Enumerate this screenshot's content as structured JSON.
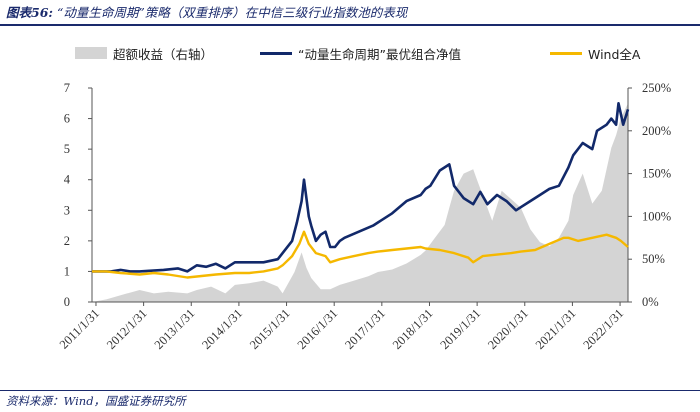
{
  "header": {
    "label": "图表56:",
    "text": "“动量生命周期”策略（双重排序）在中信三级行业指数池的表现"
  },
  "footer": {
    "source": "资料来源：Wind，国盛证券研究所"
  },
  "chart_data": {
    "type": "line",
    "title": "“动量生命周期”策略（双重排序）在中信三级行业指数池的表现",
    "legend_placement": "top",
    "grid": false,
    "x_ticks": [
      "2011/1/31",
      "2012/1/31",
      "2013/1/31",
      "2014/1/31",
      "2015/1/31",
      "2016/1/31",
      "2017/1/31",
      "2018/1/31",
      "2019/1/31",
      "2020/1/31",
      "2021/1/31",
      "2022/1/31"
    ],
    "x_range": [
      2011.0,
      2022.25
    ],
    "y_left": {
      "ticks": [
        "0",
        "1",
        "2",
        "3",
        "4",
        "5",
        "6",
        "7"
      ],
      "range": [
        0,
        7
      ]
    },
    "y_right": {
      "ticks": [
        "0%",
        "50%",
        "100%",
        "150%",
        "200%",
        "250%"
      ],
      "range": [
        0,
        250
      ]
    },
    "series": [
      {
        "name": "超额收益（右轴）",
        "type": "area",
        "axis": "right",
        "color": "#d4d4d4",
        "x": [
          2011.0,
          2011.3,
          2011.6,
          2012.0,
          2012.3,
          2012.6,
          2013.0,
          2013.2,
          2013.5,
          2013.8,
          2014.0,
          2014.3,
          2014.6,
          2014.9,
          2015.0,
          2015.25,
          2015.4,
          2015.5,
          2015.6,
          2015.8,
          2016.0,
          2016.2,
          2016.5,
          2016.8,
          2017.0,
          2017.3,
          2017.6,
          2017.9,
          2018.0,
          2018.2,
          2018.4,
          2018.5,
          2018.6,
          2018.8,
          2019.0,
          2019.1,
          2019.3,
          2019.4,
          2019.6,
          2019.8,
          2020.0,
          2020.2,
          2020.4,
          2020.6,
          2020.8,
          2021.0,
          2021.1,
          2021.3,
          2021.5,
          2021.7,
          2021.9,
          2022.0,
          2022.1,
          2022.25
        ],
        "y": [
          0,
          3,
          8,
          14,
          10,
          12,
          10,
          14,
          18,
          10,
          20,
          22,
          25,
          18,
          10,
          35,
          58,
          40,
          28,
          15,
          15,
          20,
          25,
          30,
          35,
          38,
          45,
          55,
          60,
          75,
          90,
          110,
          130,
          150,
          155,
          140,
          110,
          95,
          130,
          120,
          110,
          85,
          70,
          65,
          75,
          95,
          125,
          150,
          115,
          130,
          180,
          195,
          215,
          232
        ]
      },
      {
        "name": "“动量生命周期”最优组合净值",
        "type": "line",
        "axis": "left",
        "color": "#12296a",
        "x": [
          2011.0,
          2011.2,
          2011.4,
          2011.6,
          2011.8,
          2012.0,
          2012.2,
          2012.5,
          2012.8,
          2013.0,
          2013.2,
          2013.4,
          2013.6,
          2013.8,
          2014.0,
          2014.3,
          2014.6,
          2014.9,
          2015.0,
          2015.2,
          2015.3,
          2015.4,
          2015.45,
          2015.5,
          2015.55,
          2015.6,
          2015.7,
          2015.8,
          2015.9,
          2016.0,
          2016.1,
          2016.2,
          2016.3,
          2016.6,
          2016.9,
          2017.0,
          2017.3,
          2017.6,
          2017.9,
          2018.0,
          2018.1,
          2018.3,
          2018.5,
          2018.6,
          2018.8,
          2019.0,
          2019.15,
          2019.3,
          2019.5,
          2019.7,
          2019.9,
          2020.0,
          2020.2,
          2020.4,
          2020.6,
          2020.8,
          2021.0,
          2021.1,
          2021.3,
          2021.5,
          2021.6,
          2021.8,
          2021.9,
          2022.0,
          2022.05,
          2022.15,
          2022.25
        ],
        "y": [
          1.0,
          1.0,
          1.0,
          1.05,
          1.0,
          1.0,
          1.02,
          1.05,
          1.1,
          1.0,
          1.2,
          1.15,
          1.25,
          1.1,
          1.3,
          1.3,
          1.3,
          1.4,
          1.6,
          2.0,
          2.6,
          3.3,
          4.0,
          3.4,
          2.8,
          2.5,
          2.0,
          2.2,
          2.3,
          1.8,
          1.8,
          2.0,
          2.1,
          2.3,
          2.5,
          2.6,
          2.9,
          3.3,
          3.5,
          3.7,
          3.8,
          4.3,
          4.5,
          3.8,
          3.4,
          3.2,
          3.6,
          3.2,
          3.5,
          3.3,
          3.0,
          3.1,
          3.3,
          3.5,
          3.7,
          3.8,
          4.4,
          4.8,
          5.2,
          5.0,
          5.6,
          5.8,
          6.0,
          5.8,
          6.5,
          5.8,
          6.3
        ]
      },
      {
        "name": "Wind全A",
        "type": "line",
        "axis": "left",
        "color": "#f5b800",
        "x": [
          2011.0,
          2011.3,
          2011.6,
          2012.0,
          2012.3,
          2012.6,
          2013.0,
          2013.3,
          2013.6,
          2014.0,
          2014.3,
          2014.6,
          2014.9,
          2015.0,
          2015.2,
          2015.35,
          2015.45,
          2015.55,
          2015.7,
          2015.9,
          2016.0,
          2016.2,
          2016.5,
          2016.8,
          2017.0,
          2017.3,
          2017.6,
          2017.9,
          2018.0,
          2018.3,
          2018.6,
          2018.9,
          2019.0,
          2019.2,
          2019.5,
          2019.8,
          2020.0,
          2020.3,
          2020.6,
          2020.9,
          2021.0,
          2021.2,
          2021.5,
          2021.8,
          2022.0,
          2022.1,
          2022.25
        ],
        "y": [
          1.0,
          1.0,
          0.95,
          0.9,
          0.95,
          0.9,
          0.8,
          0.85,
          0.9,
          0.95,
          0.95,
          1.0,
          1.1,
          1.2,
          1.5,
          1.9,
          2.3,
          1.9,
          1.6,
          1.5,
          1.3,
          1.4,
          1.5,
          1.6,
          1.65,
          1.7,
          1.75,
          1.8,
          1.75,
          1.7,
          1.6,
          1.45,
          1.3,
          1.5,
          1.55,
          1.6,
          1.65,
          1.7,
          1.9,
          2.1,
          2.1,
          2.0,
          2.1,
          2.2,
          2.1,
          2.0,
          1.8
        ]
      }
    ]
  }
}
